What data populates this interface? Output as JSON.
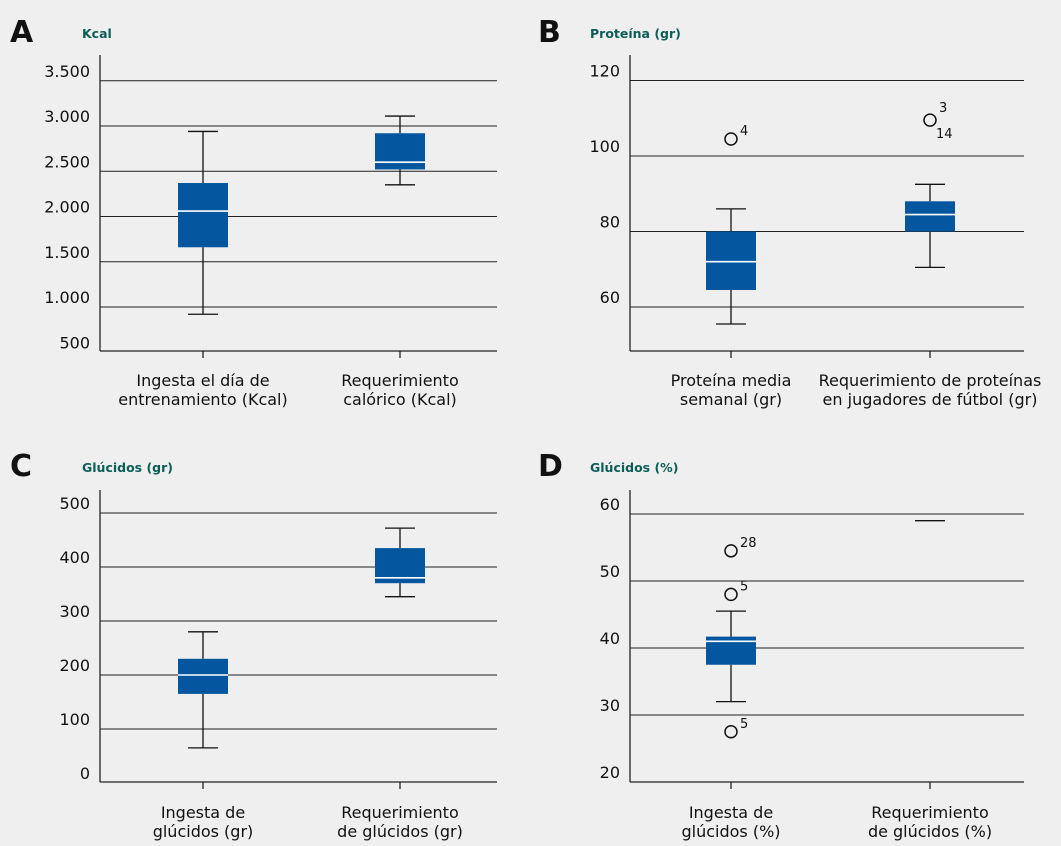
{
  "colors": {
    "box": "#04579f",
    "median": "#ffffff",
    "grid": "#222222",
    "title": "#0b5e57",
    "background": "#efefef"
  },
  "chart_data": [
    {
      "type": "boxplot",
      "panel": "A",
      "title": "Kcal",
      "yticks": [
        "3.500",
        "3.000",
        "2.500",
        "2.000",
        "1.500",
        "1.000",
        "500"
      ],
      "ytick_values": [
        3500,
        3000,
        2500,
        2000,
        1500,
        1000,
        500
      ],
      "ylim": [
        400,
        3500
      ],
      "categories": [
        [
          "Ingesta el día de",
          "entrenamiento (Kcal)"
        ],
        [
          "Requerimiento",
          "calórico (Kcal)"
        ]
      ],
      "boxes": [
        {
          "min": 920,
          "q1": 1660,
          "median": 2060,
          "q3": 2370,
          "max": 2940,
          "outliers": []
        },
        {
          "min": 2350,
          "q1": 2520,
          "median": 2600,
          "q3": 2920,
          "max": 3110,
          "outliers": []
        }
      ]
    },
    {
      "type": "boxplot",
      "panel": "B",
      "title": "Proteína (gr)",
      "yticks": [
        "120",
        "100",
        "80",
        "60"
      ],
      "ytick_values": [
        120,
        100,
        80,
        60
      ],
      "ylim": [
        48,
        123
      ],
      "categories": [
        [
          "Proteína media",
          "semanal (gr)"
        ],
        [
          "Requerimiento de proteínas",
          "en jugadores de fútbol (gr)"
        ]
      ],
      "boxes": [
        {
          "min": 55.5,
          "q1": 64.5,
          "median": 72,
          "q3": 80,
          "max": 86,
          "outliers": [
            {
              "value": 104.5,
              "labels": [
                "4"
              ]
            }
          ]
        },
        {
          "min": 70.5,
          "q1": 80,
          "median": 84.5,
          "q3": 88,
          "max": 92.5,
          "outliers": [
            {
              "value": 109.5,
              "labels": [
                "3",
                "14"
              ]
            }
          ]
        }
      ]
    },
    {
      "type": "boxplot",
      "panel": "C",
      "title": "Glúcidos (gr)",
      "yticks": [
        "500",
        "400",
        "300",
        "200",
        "100",
        "0"
      ],
      "ytick_values": [
        500,
        400,
        300,
        200,
        100,
        0
      ],
      "ylim": [
        -25,
        510
      ],
      "categories": [
        [
          "Ingesta de",
          "glúcidos (gr)"
        ],
        [
          "Requerimiento",
          "de glúcidos (gr)"
        ]
      ],
      "boxes": [
        {
          "min": 65,
          "q1": 165,
          "median": 200,
          "q3": 230,
          "max": 280,
          "outliers": []
        },
        {
          "min": 345,
          "q1": 370,
          "median": 380,
          "q3": 435,
          "max": 472,
          "outliers": []
        }
      ]
    },
    {
      "type": "boxplot",
      "panel": "D",
      "title": "Glúcidos (%)",
      "yticks": [
        "60",
        "50",
        "40",
        "30",
        "20"
      ],
      "ytick_values": [
        60,
        50,
        40,
        30,
        20
      ],
      "ylim": [
        18,
        61
      ],
      "categories": [
        [
          "Ingesta de",
          "glúcidos (%)"
        ],
        [
          "Requerimiento",
          "de glúcidos (%)"
        ]
      ],
      "boxes": [
        {
          "min": 32,
          "q1": 37.5,
          "median": 41,
          "q3": 41.7,
          "max": 45.5,
          "outliers": [
            {
              "value": 54.5,
              "labels": [
                "28"
              ]
            },
            {
              "value": 48,
              "labels": [
                "5"
              ]
            },
            {
              "value": 27.5,
              "labels": [
                "5"
              ]
            }
          ]
        },
        {
          "line_only": true,
          "median": 59,
          "outliers": []
        }
      ]
    }
  ]
}
